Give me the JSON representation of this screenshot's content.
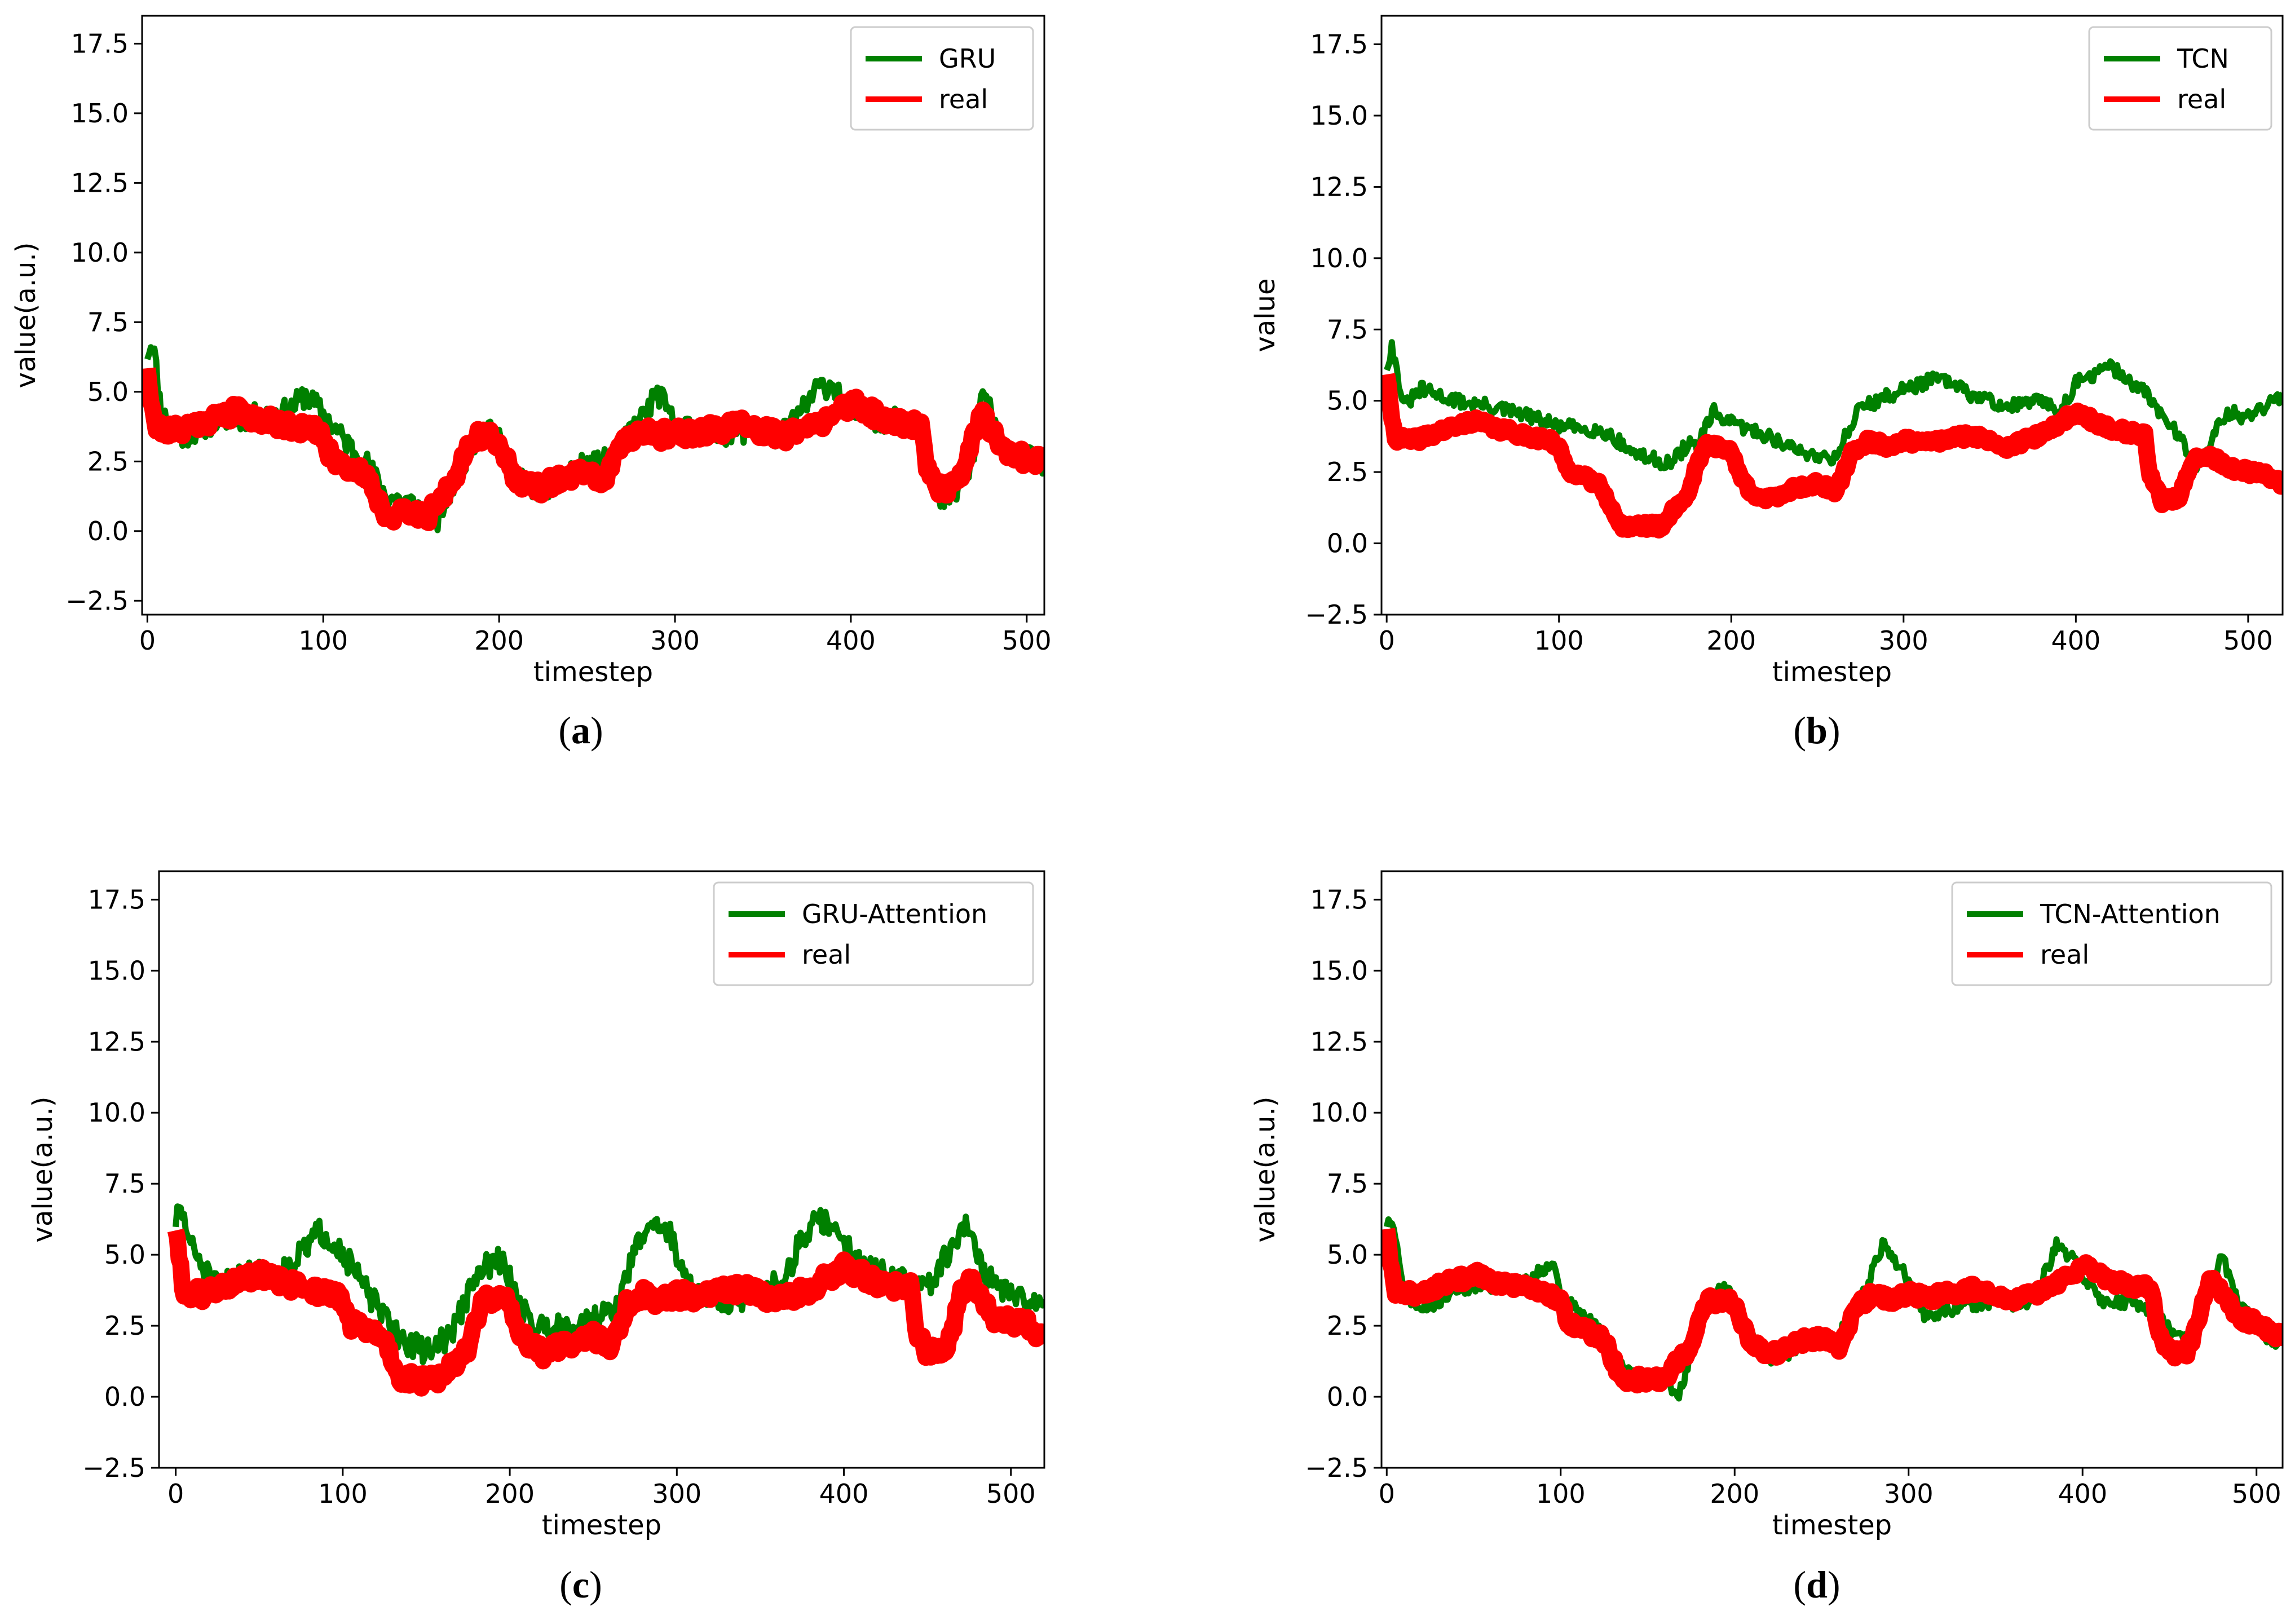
{
  "figure": {
    "colors": {
      "predicted": "#008000",
      "real": "#ff0000",
      "axes": "#000000",
      "background": "#ffffff"
    }
  },
  "chart_data": [
    {
      "id": "a",
      "type": "line",
      "caption": "a",
      "xlabel": "timestep",
      "ylabel": "value(a.u.)",
      "xlim": [
        -3,
        510
      ],
      "ylim": [
        -3.0,
        18.5
      ],
      "xticks": [
        0,
        100,
        200,
        300,
        400,
        500
      ],
      "xtick_labels": [
        "0",
        "100",
        "200",
        "300",
        "400",
        "500"
      ],
      "yticks": [
        -2.5,
        0,
        2.5,
        5,
        7.5,
        10,
        12.5,
        15,
        17.5
      ],
      "ytick_labels": [
        "−2.5",
        "0.0",
        "2.5",
        "5.0",
        "7.5",
        "10.0",
        "12.5",
        "15.0",
        "17.5"
      ],
      "legend": {
        "position": "top-right",
        "entries": [
          "GRU",
          "real"
        ]
      },
      "series": [
        {
          "name": "GRU",
          "color": "#008000",
          "role": "predicted",
          "noise": 0.45,
          "seed": 11,
          "x": [
            0,
            3,
            8,
            20,
            40,
            60,
            80,
            90,
            100,
            110,
            125,
            135,
            150,
            165,
            175,
            185,
            195,
            205,
            215,
            225,
            240,
            255,
            265,
            275,
            285,
            290,
            300,
            320,
            340,
            360,
            375,
            380,
            390,
            400,
            420,
            440,
            445,
            450,
            460,
            470,
            475,
            485,
            500,
            510
          ],
          "y": [
            6.4,
            6.9,
            4.2,
            3.4,
            4.0,
            4.1,
            4.3,
            4.9,
            4.2,
            3.4,
            2.4,
            1.3,
            1.0,
            0.4,
            1.8,
            3.2,
            3.8,
            2.6,
            1.6,
            1.5,
            2.2,
            2.4,
            2.6,
            3.6,
            4.4,
            5.0,
            3.8,
            3.5,
            3.6,
            3.4,
            4.5,
            5.1,
            5.3,
            4.2,
            4.0,
            3.8,
            2.4,
            1.0,
            1.4,
            2.6,
            5.2,
            3.0,
            2.6,
            2.4
          ]
        },
        {
          "name": "real",
          "color": "#ff0000",
          "role": "real",
          "noise": 0.3,
          "seed": 21,
          "x": [
            0,
            2,
            5,
            15,
            25,
            35,
            50,
            65,
            80,
            95,
            100,
            105,
            115,
            125,
            130,
            135,
            160,
            165,
            175,
            180,
            185,
            195,
            200,
            205,
            210,
            220,
            225,
            235,
            250,
            260,
            265,
            270,
            280,
            290,
            300,
            310,
            320,
            340,
            350,
            360,
            370,
            380,
            390,
            400,
            420,
            440,
            443,
            450,
            460,
            465,
            470,
            475,
            480,
            490,
            500,
            510
          ],
          "y": [
            6.0,
            4.8,
            3.7,
            3.6,
            3.8,
            4.0,
            4.3,
            4.0,
            3.8,
            3.6,
            3.3,
            2.6,
            2.3,
            2.0,
            1.3,
            0.6,
            0.6,
            1.1,
            1.7,
            2.8,
            3.4,
            3.4,
            3.2,
            2.4,
            1.9,
            1.5,
            1.6,
            1.9,
            2.1,
            1.8,
            2.4,
            3.2,
            3.6,
            3.4,
            3.6,
            3.5,
            3.6,
            3.8,
            3.6,
            3.4,
            3.6,
            3.8,
            4.2,
            4.6,
            4.0,
            3.8,
            2.4,
            1.5,
            1.6,
            2.4,
            3.6,
            4.2,
            3.6,
            2.8,
            2.6,
            2.5
          ]
        }
      ]
    },
    {
      "id": "b",
      "type": "line",
      "caption": "b",
      "xlabel": "timestep",
      "ylabel": "value",
      "xlim": [
        -3,
        520
      ],
      "ylim": [
        -2.5,
        18.5
      ],
      "xticks": [
        0,
        100,
        200,
        300,
        400,
        500
      ],
      "xtick_labels": [
        "0",
        "100",
        "200",
        "300",
        "400",
        "500"
      ],
      "yticks": [
        -2.5,
        0,
        2.5,
        5,
        7.5,
        10,
        12.5,
        15,
        17.5
      ],
      "ytick_labels": [
        "−2.5",
        "0.0",
        "2.5",
        "5.0",
        "7.5",
        "10.0",
        "12.5",
        "15.0",
        "17.5"
      ],
      "legend": {
        "position": "top-right",
        "entries": [
          "TCN",
          "real"
        ]
      },
      "series": [
        {
          "name": "TCN",
          "color": "#008000",
          "role": "predicted",
          "noise": 0.25,
          "seed": 31,
          "x": [
            0,
            3,
            10,
            20,
            40,
            60,
            80,
            90,
            100,
            120,
            130,
            140,
            150,
            165,
            175,
            180,
            190,
            200,
            220,
            240,
            260,
            275,
            285,
            300,
            320,
            340,
            360,
            380,
            390,
            400,
            420,
            440,
            450,
            460,
            470,
            480,
            490,
            500,
            510,
            520
          ],
          "y": [
            6.2,
            6.9,
            4.8,
            5.4,
            5.0,
            4.8,
            4.5,
            4.3,
            4.1,
            4.0,
            3.8,
            3.3,
            3.0,
            2.8,
            3.5,
            3.4,
            4.6,
            4.2,
            3.8,
            3.2,
            3.0,
            4.8,
            5.0,
            5.4,
            5.8,
            5.2,
            4.8,
            5.0,
            4.6,
            5.6,
            6.2,
            5.3,
            4.5,
            3.8,
            2.5,
            3.9,
            4.6,
            4.4,
            4.8,
            5.1
          ]
        },
        {
          "name": "real",
          "color": "#ff0000",
          "role": "real",
          "noise": 0.15,
          "seed": 41,
          "x": [
            0,
            2,
            5,
            15,
            25,
            35,
            50,
            65,
            80,
            95,
            100,
            105,
            115,
            125,
            130,
            135,
            160,
            165,
            175,
            180,
            185,
            195,
            200,
            205,
            210,
            220,
            225,
            235,
            250,
            260,
            265,
            270,
            280,
            290,
            300,
            310,
            320,
            340,
            350,
            360,
            370,
            380,
            390,
            400,
            420,
            440,
            443,
            450,
            460,
            465,
            470,
            480,
            490,
            500,
            510,
            520
          ],
          "y": [
            6.0,
            4.8,
            3.7,
            3.6,
            3.8,
            4.0,
            4.3,
            4.0,
            3.8,
            3.6,
            3.3,
            2.6,
            2.3,
            2.0,
            1.3,
            0.6,
            0.6,
            1.1,
            1.7,
            2.8,
            3.4,
            3.4,
            3.2,
            2.4,
            1.9,
            1.5,
            1.6,
            1.9,
            2.1,
            1.8,
            2.4,
            3.2,
            3.6,
            3.4,
            3.6,
            3.5,
            3.6,
            3.8,
            3.6,
            3.4,
            3.6,
            3.8,
            4.2,
            4.6,
            4.0,
            3.8,
            2.4,
            1.5,
            1.6,
            2.4,
            3.0,
            3.0,
            2.6,
            2.5,
            2.4,
            2.1
          ]
        }
      ]
    },
    {
      "id": "c",
      "type": "line",
      "caption": "c",
      "xlabel": "timestep",
      "ylabel": "value(a.u.)",
      "xlim": [
        -10,
        520
      ],
      "ylim": [
        -2.5,
        18.5
      ],
      "xticks": [
        0,
        100,
        200,
        300,
        400,
        500
      ],
      "xtick_labels": [
        "0",
        "100",
        "200",
        "300",
        "400",
        "500"
      ],
      "yticks": [
        -2.5,
        0,
        2.5,
        5,
        7.5,
        10,
        12.5,
        15,
        17.5
      ],
      "ytick_labels": [
        "−2.5",
        "0.0",
        "2.5",
        "5.0",
        "7.5",
        "10.0",
        "12.5",
        "15.0",
        "17.5"
      ],
      "legend": {
        "position": "top-right",
        "entries": [
          "GRU-Attention",
          "real"
        ]
      },
      "series": [
        {
          "name": "GRU-Attention",
          "color": "#008000",
          "role": "predicted",
          "noise": 0.45,
          "seed": 51,
          "x": [
            0,
            3,
            10,
            25,
            40,
            60,
            75,
            85,
            95,
            105,
            120,
            135,
            150,
            165,
            175,
            185,
            195,
            205,
            215,
            225,
            240,
            255,
            265,
            275,
            285,
            295,
            310,
            330,
            350,
            365,
            375,
            385,
            395,
            410,
            430,
            445,
            455,
            465,
            475,
            480,
            490,
            505,
            520
          ],
          "y": [
            6.2,
            6.6,
            5.2,
            3.8,
            4.4,
            4.3,
            5.0,
            5.8,
            5.5,
            4.6,
            3.2,
            2.0,
            1.6,
            2.2,
            3.6,
            4.6,
            4.8,
            3.4,
            2.4,
            2.5,
            2.6,
            2.8,
            3.2,
            5.2,
            6.2,
            5.8,
            3.6,
            3.4,
            3.6,
            4.2,
            5.6,
            6.2,
            6.0,
            4.6,
            4.2,
            3.8,
            4.2,
            5.4,
            6.1,
            4.8,
            4.0,
            3.4,
            3.3
          ]
        },
        {
          "name": "real",
          "color": "#ff0000",
          "role": "real",
          "noise": 0.3,
          "seed": 61,
          "x": [
            0,
            2,
            5,
            15,
            25,
            35,
            50,
            65,
            80,
            95,
            100,
            105,
            115,
            125,
            130,
            135,
            160,
            165,
            175,
            180,
            185,
            195,
            200,
            205,
            210,
            220,
            225,
            235,
            250,
            260,
            265,
            270,
            280,
            290,
            300,
            310,
            320,
            340,
            350,
            360,
            370,
            380,
            390,
            400,
            420,
            440,
            443,
            450,
            460,
            465,
            470,
            475,
            480,
            490,
            500,
            510,
            520
          ],
          "y": [
            6.0,
            4.8,
            3.7,
            3.6,
            3.8,
            4.0,
            4.3,
            4.0,
            3.8,
            3.6,
            3.3,
            2.6,
            2.3,
            2.0,
            1.3,
            0.6,
            0.6,
            1.1,
            1.7,
            2.8,
            3.4,
            3.4,
            3.2,
            2.4,
            1.9,
            1.5,
            1.6,
            1.9,
            2.1,
            1.8,
            2.4,
            3.2,
            3.6,
            3.4,
            3.6,
            3.5,
            3.6,
            3.8,
            3.6,
            3.4,
            3.6,
            3.8,
            4.2,
            4.6,
            4.0,
            3.8,
            2.4,
            1.5,
            1.6,
            2.4,
            3.6,
            4.2,
            3.6,
            2.8,
            2.6,
            2.5,
            2.1
          ]
        }
      ]
    },
    {
      "id": "d",
      "type": "line",
      "caption": "d",
      "xlabel": "timestep",
      "ylabel": "value(a.u.)",
      "xlim": [
        -3,
        515
      ],
      "ylim": [
        -2.5,
        18.5
      ],
      "xticks": [
        0,
        100,
        200,
        300,
        400,
        500
      ],
      "xtick_labels": [
        "0",
        "100",
        "200",
        "300",
        "400",
        "500"
      ],
      "yticks": [
        -2.5,
        0,
        2.5,
        5,
        7.5,
        10,
        12.5,
        15,
        17.5
      ],
      "ytick_labels": [
        "−2.5",
        "0.0",
        "2.5",
        "5.0",
        "7.5",
        "10.0",
        "12.5",
        "15.0",
        "17.5"
      ],
      "legend": {
        "position": "top-right",
        "entries": [
          "TCN-Attention",
          "real"
        ]
      },
      "series": [
        {
          "name": "TCN-Attention",
          "color": "#008000",
          "role": "predicted",
          "noise": 0.25,
          "seed": 71,
          "x": [
            0,
            3,
            10,
            20,
            40,
            60,
            80,
            95,
            100,
            110,
            125,
            135,
            150,
            160,
            168,
            175,
            185,
            195,
            205,
            215,
            225,
            240,
            255,
            265,
            275,
            285,
            295,
            310,
            330,
            350,
            365,
            375,
            385,
            395,
            410,
            430,
            445,
            455,
            465,
            475,
            480,
            490,
            505,
            515
          ],
          "y": [
            6.1,
            6.2,
            3.6,
            3.0,
            3.8,
            3.9,
            4.0,
            4.8,
            3.6,
            3.0,
            2.2,
            1.0,
            0.6,
            0.4,
            0.0,
            1.6,
            3.4,
            3.9,
            2.6,
            1.6,
            1.3,
            2.0,
            1.8,
            2.6,
            3.8,
            5.4,
            4.6,
            2.8,
            3.2,
            3.4,
            3.2,
            3.8,
            5.3,
            4.8,
            3.4,
            3.3,
            3.0,
            2.0,
            2.2,
            4.0,
            5.0,
            3.2,
            2.2,
            1.8
          ]
        },
        {
          "name": "real",
          "color": "#ff0000",
          "role": "real",
          "noise": 0.2,
          "seed": 81,
          "x": [
            0,
            2,
            5,
            15,
            25,
            35,
            50,
            65,
            80,
            95,
            100,
            105,
            115,
            125,
            130,
            135,
            160,
            165,
            175,
            180,
            185,
            195,
            200,
            205,
            210,
            220,
            225,
            235,
            250,
            260,
            265,
            270,
            280,
            290,
            300,
            310,
            320,
            340,
            350,
            360,
            370,
            380,
            390,
            400,
            420,
            440,
            443,
            450,
            460,
            465,
            470,
            475,
            480,
            490,
            500,
            515
          ],
          "y": [
            6.0,
            4.8,
            3.7,
            3.6,
            3.8,
            4.0,
            4.3,
            4.0,
            3.8,
            3.6,
            3.3,
            2.6,
            2.3,
            2.0,
            1.3,
            0.6,
            0.6,
            1.1,
            1.7,
            2.8,
            3.4,
            3.4,
            3.2,
            2.4,
            1.9,
            1.5,
            1.6,
            1.9,
            2.1,
            1.8,
            2.4,
            3.2,
            3.6,
            3.4,
            3.6,
            3.5,
            3.6,
            3.8,
            3.6,
            3.4,
            3.6,
            3.8,
            4.2,
            4.6,
            4.0,
            3.8,
            2.4,
            1.5,
            1.6,
            2.4,
            3.6,
            4.2,
            3.6,
            2.8,
            2.6,
            2.1
          ]
        }
      ]
    }
  ]
}
